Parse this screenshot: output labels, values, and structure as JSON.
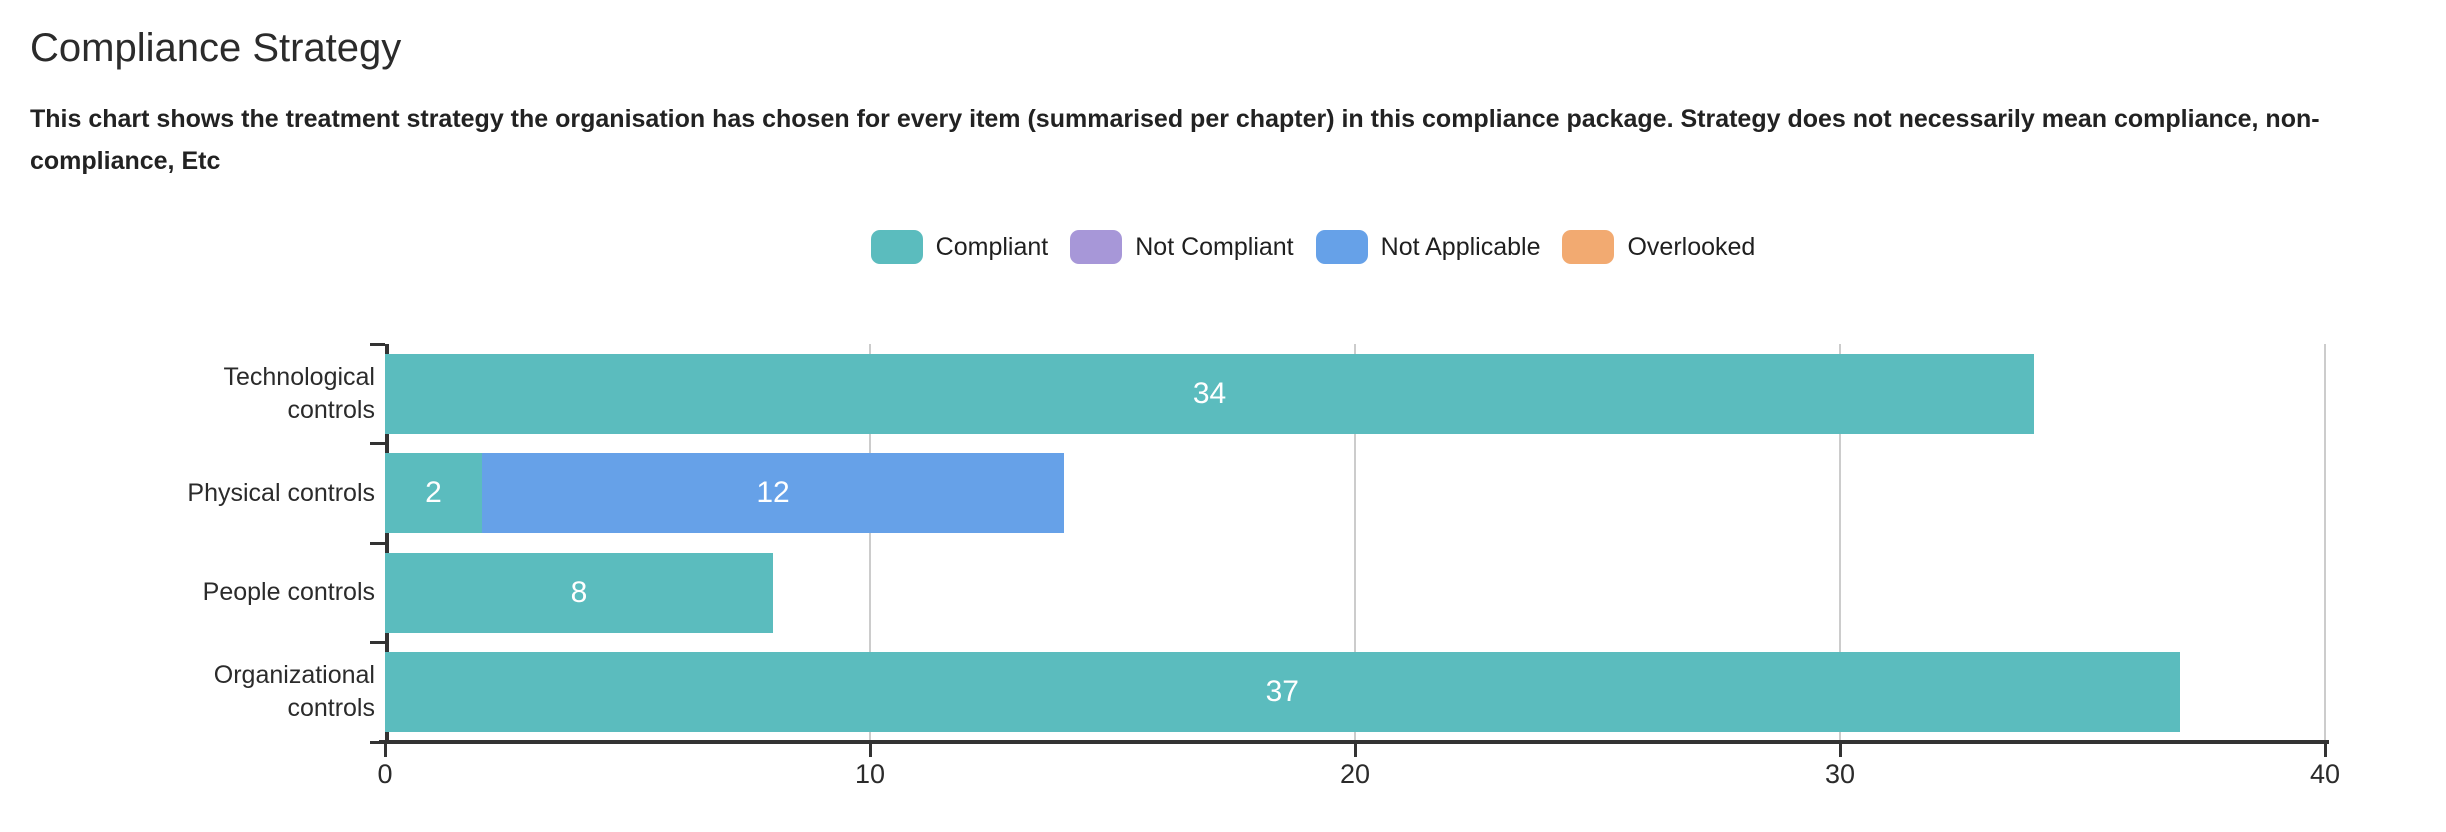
{
  "header": {
    "title": "Compliance Strategy",
    "subtitle": "This chart shows the treatment strategy the organisation has chosen for every item (summarised per chapter) in this compliance package. Strategy does not necessarily mean compliance, non-compliance, Etc"
  },
  "chart_data": {
    "type": "bar",
    "orientation": "horizontal",
    "stacked": true,
    "title": "Compliance Strategy",
    "subtitle": "This chart shows the treatment strategy the organisation has chosen for every item (summarised per chapter) in this compliance package. Strategy does not necessarily mean compliance, non-compliance, Etc",
    "categories": [
      "Technological controls",
      "Physical controls",
      "People controls",
      "Organizational controls"
    ],
    "category_label_lines": [
      [
        "Technological",
        "controls"
      ],
      [
        "Physical controls"
      ],
      [
        "People controls"
      ],
      [
        "Organizational",
        "controls"
      ]
    ],
    "series": [
      {
        "name": "Compliant",
        "color": "#5bbcbe",
        "values": [
          34,
          2,
          8,
          37
        ]
      },
      {
        "name": "Not Compliant",
        "color": "#a797d8",
        "values": [
          0,
          0,
          0,
          0
        ]
      },
      {
        "name": "Not Applicable",
        "color": "#66a1e8",
        "values": [
          0,
          12,
          0,
          0
        ]
      },
      {
        "name": "Overlooked",
        "color": "#f2aa71",
        "values": [
          0,
          0,
          0,
          0
        ]
      }
    ],
    "xlabel": "",
    "ylabel": "",
    "xlim": [
      0,
      40
    ],
    "xticks": [
      0,
      10,
      20,
      30,
      40
    ],
    "grid": true,
    "legend_position": "top-center",
    "legend_entries": [
      "Compliant",
      "Not Compliant",
      "Not Applicable",
      "Overlooked"
    ],
    "value_labels": "segment values shown as white centered numbers; zero segments hidden",
    "style": {
      "axis_color": "#333333",
      "grid_color": "#cccccc",
      "tick_text_color": "#2b2b2b",
      "bar_value_text_color": "#ffffff",
      "background": "#ffffff"
    }
  }
}
